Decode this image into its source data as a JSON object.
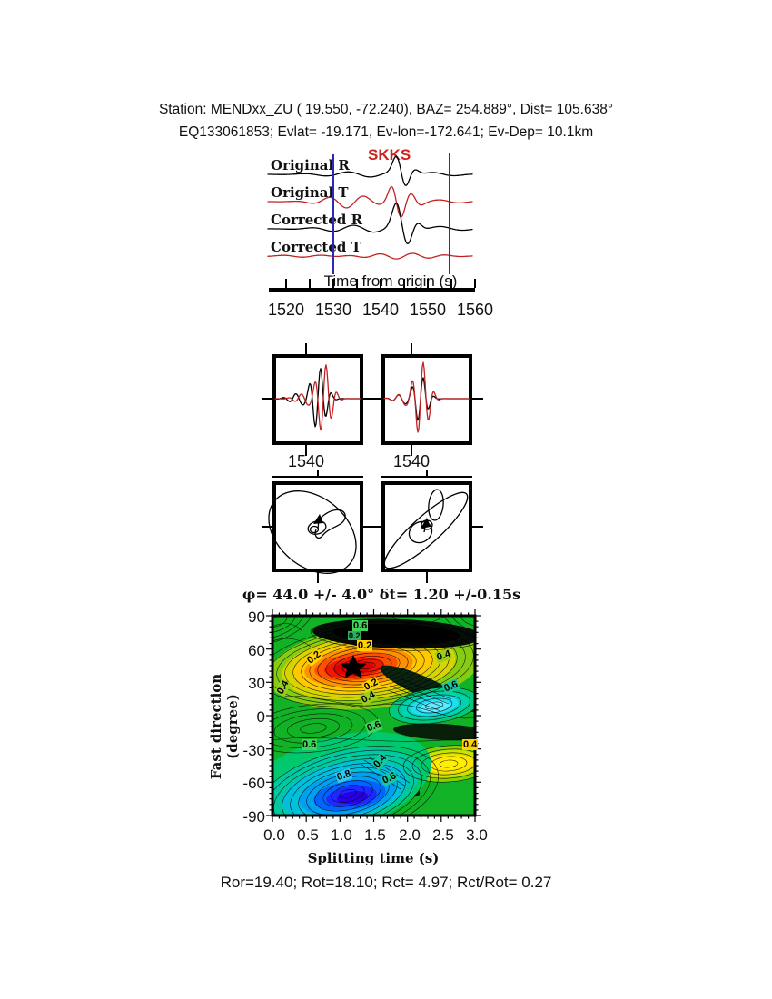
{
  "header": {
    "line1": "Station: MENDxx_ZU (  19.550,  -72.240), BAZ=  254.889°, Dist=  105.638°",
    "line2": "EQ133061853; Evlat= -19.171, Ev-lon=-172.641; Ev-Dep= 10.1km"
  },
  "waveform_section": {
    "phase_label": "SKKS",
    "trace_labels": [
      "Original R",
      "Original T",
      "Corrected R",
      "Corrected T"
    ],
    "trace_colors": [
      "#000000",
      "#c22222",
      "#000000",
      "#c22222"
    ],
    "window_color": "#2a2ab4",
    "axis": {
      "title": "Time from origin (s)",
      "ticks": [
        "1520",
        "1530",
        "1540",
        "1550",
        "1560"
      ]
    }
  },
  "panels": {
    "left_tick_label": "1540",
    "right_tick_label": "1540"
  },
  "result_line": "φ= 44.0 +/- 4.0° δt= 1.20 +/-0.15s",
  "contour": {
    "ylabel": "Fast direction (degree)",
    "xlabel": "Splitting time (s)",
    "yticks": [
      "90",
      "60",
      "30",
      "0",
      "-30",
      "-60",
      "-90"
    ],
    "xticks": [
      "0.0",
      "0.5",
      "1.0",
      "1.5",
      "2.0",
      "2.5",
      "3.0"
    ],
    "labels": [
      {
        "text": "0.6"
      },
      {
        "text": "0.2"
      },
      {
        "text": "0.2"
      },
      {
        "text": "0.2"
      },
      {
        "text": "0.4"
      },
      {
        "text": "0.2"
      },
      {
        "text": "0.4"
      },
      {
        "text": "0.4"
      },
      {
        "text": "0.6"
      },
      {
        "text": "0.6"
      },
      {
        "text": "0.6"
      },
      {
        "text": "0.4"
      },
      {
        "text": "0.8"
      },
      {
        "text": "0.4"
      },
      {
        "text": "0.6"
      }
    ]
  },
  "footer": {
    "stats": "Ror=19.40; Rot=18.10; Rct= 4.97; Rct/Rot= 0.27"
  },
  "chart_data": [
    {
      "type": "line",
      "id": "waveform-traces",
      "title": "SKKS",
      "xlabel": "Time from origin (s)",
      "xticks": [
        1520,
        1525,
        1530,
        1535,
        1540,
        1545,
        1550,
        1555,
        1560
      ],
      "xlim": [
        1516,
        1563
      ],
      "series": [
        {
          "name": "Original R",
          "color": "#000000",
          "description": "radial component before correction, main pulse near 1543 s"
        },
        {
          "name": "Original T",
          "color": "#c22222",
          "description": "transverse component before correction, significant energy near 1542 s"
        },
        {
          "name": "Corrected R",
          "color": "#000000",
          "description": "radial component after splitting correction, large pulse near 1543 s"
        },
        {
          "name": "Corrected T",
          "color": "#c22222",
          "description": "transverse component after correction, energy minimized"
        }
      ],
      "analysis_window_s": [
        1530,
        1554.5
      ]
    },
    {
      "type": "line",
      "id": "fast-slow-overlay",
      "panels": [
        {
          "xtick": 1540,
          "description": "fast (black) and slow (red) waveforms before delay correction, shifted"
        },
        {
          "xtick": 1540,
          "description": "fast (black) and slow (red) waveforms after delay correction, aligned"
        }
      ]
    },
    {
      "type": "scatter",
      "id": "particle-motion",
      "panels": [
        {
          "description": "elliptical particle motion before correction"
        },
        {
          "description": "linearized diagonal particle motion after correction"
        }
      ]
    },
    {
      "type": "heatmap",
      "id": "splitting-error-surface",
      "title": "φ= 44.0 +/- 4.0° δt= 1.20 +/-0.15s",
      "xlabel": "Splitting time (s)",
      "ylabel": "Fast direction (degree)",
      "xlim": [
        0.0,
        3.0
      ],
      "ylim": [
        -90,
        90
      ],
      "xticks": [
        0.0,
        0.5,
        1.0,
        1.5,
        2.0,
        2.5,
        3.0
      ],
      "yticks": [
        90,
        60,
        30,
        0,
        -30,
        -60,
        -90
      ],
      "grid": false,
      "best_fit": {
        "phi_deg": 44.0,
        "phi_err_deg": 4.0,
        "dt_s": 1.2,
        "dt_err_s": 0.15
      },
      "star_marker": {
        "dt_s": 1.2,
        "phi_deg": 44
      },
      "contour_levels": [
        0.2,
        0.4,
        0.6,
        0.8
      ],
      "features": [
        {
          "kind": "minimum-red",
          "dt_s": 1.2,
          "phi_deg": 44
        },
        {
          "kind": "dark-band",
          "dt_s": 1.85,
          "phi_deg": 73
        },
        {
          "kind": "cyan-high",
          "dt_s": 2.4,
          "phi_deg": 8
        },
        {
          "kind": "yellow-low",
          "dt_s": 2.6,
          "phi_deg": -44
        },
        {
          "kind": "blue-high",
          "dt_s": 1.2,
          "phi_deg": -73
        }
      ],
      "stats": {
        "Ror": 19.4,
        "Rot": 18.1,
        "Rct": 4.97,
        "Rct_Rot": 0.27
      }
    }
  ]
}
